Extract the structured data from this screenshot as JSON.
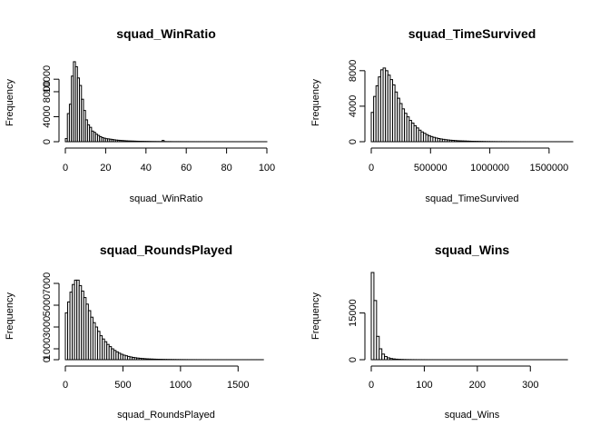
{
  "chart_data": [
    {
      "type": "bar",
      "title": "squad_WinRatio",
      "xlabel": "squad_WinRatio",
      "ylabel": "Frequency",
      "xlim": [
        0,
        100
      ],
      "ylim": [
        0,
        12500
      ],
      "x_ticks": [
        0,
        20,
        40,
        60,
        80,
        100
      ],
      "y_ticks": [
        0,
        4000,
        8000,
        10000
      ],
      "y_tick_labels": [
        "0",
        "4000",
        "8000",
        "10000"
      ],
      "bin_start": 0,
      "bin_width": 1,
      "values": [
        500,
        4500,
        6000,
        10500,
        12800,
        12000,
        10200,
        9000,
        6800,
        5000,
        3500,
        2700,
        2300,
        1700,
        1500,
        1200,
        1000,
        800,
        650,
        560,
        480,
        450,
        400,
        350,
        300,
        260,
        230,
        200,
        180,
        160,
        140,
        120,
        110,
        100,
        90,
        80,
        70,
        60,
        55,
        50,
        45,
        40,
        35,
        30,
        30,
        25,
        25,
        20,
        200,
        20,
        15,
        15,
        15,
        10,
        10,
        10,
        10,
        10,
        8,
        8,
        8,
        6,
        6,
        6,
        5,
        5,
        5,
        5,
        4,
        4,
        4,
        4,
        3,
        3,
        3,
        3,
        3,
        2,
        2,
        2,
        2,
        2,
        2,
        2,
        1,
        1,
        1,
        1,
        1,
        1,
        1,
        1,
        1,
        1,
        1,
        1,
        1,
        1,
        1,
        1
      ]
    },
    {
      "type": "bar",
      "title": "squad_TimeSurvived",
      "xlabel": "squad_TimeSurvived",
      "ylabel": "Frequency",
      "xlim": [
        0,
        1700000
      ],
      "ylim": [
        0,
        8800
      ],
      "x_ticks": [
        0,
        500000,
        1000000,
        1500000
      ],
      "y_ticks": [
        0,
        4000,
        8000
      ],
      "y_tick_labels": [
        "0",
        "4000",
        "8000"
      ],
      "bin_start": 0,
      "bin_width": 20000,
      "values": [
        3300,
        5100,
        6300,
        7300,
        8100,
        8300,
        8000,
        7500,
        7000,
        6400,
        5600,
        4900,
        4300,
        3700,
        3200,
        2800,
        2400,
        2100,
        1800,
        1550,
        1300,
        1100,
        950,
        800,
        680,
        580,
        490,
        420,
        360,
        310,
        270,
        230,
        200,
        170,
        150,
        130,
        110,
        100,
        90,
        80,
        70,
        60,
        50,
        45,
        40,
        35,
        30,
        25,
        20,
        18,
        16,
        14,
        12,
        10,
        9,
        8,
        7,
        6,
        5,
        5,
        4,
        4,
        3,
        3,
        3,
        2,
        2,
        2,
        2,
        1,
        1,
        1,
        1,
        1,
        1,
        1,
        1,
        1,
        1,
        1,
        1,
        1,
        1,
        1,
        1
      ]
    },
    {
      "type": "bar",
      "title": "squad_RoundsPlayed",
      "xlabel": "squad_RoundsPlayed",
      "ylabel": "Frequency",
      "xlim": [
        0,
        1750
      ],
      "ylim": [
        0,
        8000
      ],
      "x_ticks": [
        0,
        500,
        1000,
        1500
      ],
      "y_ticks": [
        0,
        1000,
        3000,
        5000,
        7000
      ],
      "y_tick_labels": [
        "0",
        "1000",
        "3000",
        "5000",
        "7000"
      ],
      "bin_start": 0,
      "bin_width": 20,
      "values": [
        4300,
        5300,
        6200,
        6900,
        7300,
        7300,
        6800,
        6300,
        5700,
        5100,
        4500,
        3900,
        3400,
        3000,
        2600,
        2200,
        1900,
        1650,
        1400,
        1200,
        1000,
        850,
        720,
        600,
        500,
        420,
        360,
        300,
        250,
        210,
        180,
        150,
        130,
        110,
        95,
        80,
        70,
        60,
        52,
        45,
        40,
        35,
        30,
        26,
        23,
        20,
        18,
        16,
        14,
        12,
        10,
        9,
        8,
        7,
        6,
        5,
        5,
        4,
        4,
        3,
        3,
        3,
        2,
        2,
        2,
        2,
        2,
        1,
        1,
        1,
        1,
        1,
        1,
        1,
        1,
        1,
        1,
        1,
        1,
        1,
        1,
        1,
        1,
        1,
        1,
        1
      ]
    },
    {
      "type": "bar",
      "title": "squad_Wins",
      "xlabel": "squad_Wins",
      "ylabel": "Frequency",
      "xlim": [
        0,
        380
      ],
      "ylim": [
        0,
        28000
      ],
      "x_ticks": [
        0,
        100,
        200,
        300
      ],
      "y_ticks": [
        0,
        15000
      ],
      "y_tick_labels": [
        "0",
        "15000"
      ],
      "bin_start": 0,
      "bin_width": 5,
      "values": [
        28000,
        19000,
        7500,
        3500,
        1800,
        1000,
        600,
        380,
        250,
        170,
        120,
        85,
        60,
        45,
        35,
        25,
        20,
        15,
        12,
        10,
        8,
        6,
        5,
        4,
        3,
        3,
        2,
        2,
        2,
        1,
        1,
        1,
        1,
        1,
        1,
        1,
        1,
        1,
        1,
        1,
        1,
        1,
        1,
        1,
        1,
        1,
        1,
        1,
        1,
        1,
        1,
        1,
        1,
        1,
        1,
        1,
        1,
        1,
        1,
        1,
        1,
        1,
        1,
        1,
        1,
        1,
        1,
        1,
        1,
        1,
        1,
        1,
        1,
        1
      ]
    }
  ]
}
